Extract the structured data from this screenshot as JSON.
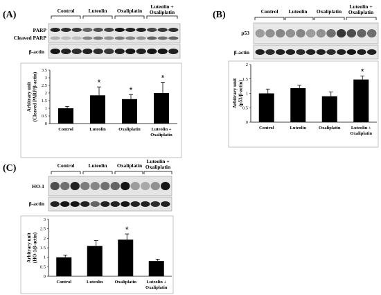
{
  "panels": [
    {
      "panel_label": "(A)",
      "groups": [
        "Control",
        "Luteolin",
        "Oxaliplatin",
        "Luteolin +",
        "Oxaliplatin"
      ],
      "blot_labels": [
        "PARP",
        "Cleaved PARP",
        "β-actin"
      ]
    },
    {
      "panel_label": "(B)",
      "groups": [
        "Control",
        "Luteolin",
        "Oxaliplatin",
        "Luteolin +",
        "Oxaliplatin"
      ],
      "blot_labels": [
        "p53",
        "β-actin"
      ]
    },
    {
      "panel_label": "(C)",
      "groups": [
        "Control",
        "Luteolin",
        "Oxaliplatin",
        "Luteolin +",
        "Oxaliplatin"
      ],
      "blot_labels": [
        "HO-1",
        "β-actin"
      ]
    }
  ],
  "chart_data": [
    {
      "type": "bar",
      "categories": [
        "Control",
        "Luteolin",
        "Oxaliplatin",
        "Luteolin + Oxaliplatin"
      ],
      "values": [
        1.0,
        1.85,
        1.6,
        2.0
      ],
      "errors": [
        0.12,
        0.55,
        0.3,
        0.7
      ],
      "significance": [
        "",
        "*",
        "*",
        "*"
      ],
      "ylabel": [
        "Arbitrary unit",
        "(Cleaved PARP/β-actin)"
      ],
      "ylim": [
        0,
        3.5
      ],
      "yticks": [
        "0",
        "0.5",
        "1",
        "1.5",
        "2",
        "2.5",
        "3",
        "3.5"
      ],
      "bar_color": "#000000"
    },
    {
      "type": "bar",
      "categories": [
        "Control",
        "Luteolin",
        "Oxaliplatin",
        "Luteolin + Oxaliplatin"
      ],
      "values": [
        1.0,
        1.18,
        0.9,
        1.48
      ],
      "errors": [
        0.15,
        0.1,
        0.15,
        0.12
      ],
      "significance": [
        "",
        "",
        "",
        "*"
      ],
      "ylabel": [
        "Arbitrary unit",
        "(p53/β-actin)"
      ],
      "ylim": [
        0,
        2
      ],
      "yticks": [
        "0",
        "0.5",
        "1",
        "1.5",
        "2"
      ],
      "bar_color": "#000000"
    },
    {
      "type": "bar",
      "categories": [
        "Control",
        "Luteolin",
        "Oxaliplatin",
        "Luteolin + Oxaliplatin"
      ],
      "values": [
        1.0,
        1.6,
        1.93,
        0.8
      ],
      "errors": [
        0.12,
        0.28,
        0.3,
        0.1
      ],
      "significance": [
        "",
        "",
        "*",
        ""
      ],
      "ylabel": [
        "Arbitrary unit",
        "(HO-1/β-actin)"
      ],
      "ylim": [
        0,
        3
      ],
      "yticks": [
        "0",
        "0.5",
        "1",
        "1.5",
        "2",
        "2.5",
        "3"
      ],
      "bar_color": "#000000"
    }
  ]
}
